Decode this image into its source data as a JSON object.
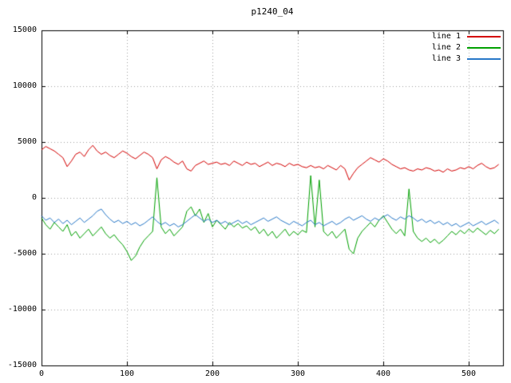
{
  "chart_data": {
    "type": "line",
    "title": "p1240_04",
    "xlabel": "",
    "ylabel": "",
    "xlim": [
      0,
      540
    ],
    "ylim": [
      -15000,
      15000
    ],
    "xticks": [
      0,
      100,
      200,
      300,
      400,
      500
    ],
    "yticks": [
      -15000,
      -10000,
      -5000,
      0,
      5000,
      10000,
      15000
    ],
    "grid": true,
    "grid_style": "dotted",
    "grid_color": "#a0a0a0",
    "border_color": "#000000",
    "background": "#ffffff",
    "legend_position": "top-right",
    "x_step": 5,
    "series": [
      {
        "name": "line 1",
        "color": "#d40000",
        "values": [
          4300,
          4600,
          4400,
          4200,
          3900,
          3600,
          2800,
          3300,
          3900,
          4100,
          3700,
          4300,
          4700,
          4200,
          3900,
          4100,
          3800,
          3600,
          3900,
          4200,
          4000,
          3700,
          3500,
          3800,
          4100,
          3900,
          3600,
          2600,
          3400,
          3700,
          3500,
          3200,
          3000,
          3300,
          2600,
          2400,
          2900,
          3100,
          3300,
          3000,
          3100,
          3200,
          3000,
          3100,
          2900,
          3300,
          3100,
          2900,
          3200,
          3000,
          3100,
          2800,
          3000,
          3200,
          2900,
          3100,
          3000,
          2800,
          3100,
          2900,
          3000,
          2800,
          2700,
          2900,
          2700,
          2800,
          2600,
          2900,
          2700,
          2500,
          2900,
          2600,
          1600,
          2200,
          2700,
          3000,
          3300,
          3600,
          3400,
          3200,
          3500,
          3300,
          3000,
          2800,
          2600,
          2700,
          2500,
          2400,
          2600,
          2500,
          2700,
          2600,
          2400,
          2500,
          2300,
          2600,
          2400,
          2500,
          2700,
          2600,
          2800,
          2600,
          2900,
          3100,
          2800,
          2600,
          2700,
          3000
        ]
      },
      {
        "name": "line 2",
        "color": "#00a000",
        "values": [
          -1800,
          -2400,
          -2800,
          -2200,
          -2600,
          -3000,
          -2400,
          -3400,
          -3000,
          -3600,
          -3200,
          -2800,
          -3400,
          -3000,
          -2600,
          -3200,
          -3600,
          -3300,
          -3800,
          -4200,
          -4800,
          -5600,
          -5200,
          -4400,
          -3800,
          -3400,
          -3000,
          1800,
          -2600,
          -3200,
          -2800,
          -3400,
          -3000,
          -2600,
          -1200,
          -800,
          -1600,
          -1000,
          -2200,
          -1400,
          -2600,
          -2000,
          -2400,
          -2800,
          -2200,
          -2600,
          -2300,
          -2700,
          -2500,
          -2900,
          -2600,
          -3200,
          -2800,
          -3400,
          -3000,
          -3600,
          -3200,
          -2800,
          -3400,
          -3000,
          -3300,
          -2900,
          -3100,
          2000,
          -2600,
          1600,
          -3000,
          -3400,
          -3000,
          -3600,
          -3200,
          -2800,
          -4600,
          -5000,
          -3600,
          -3000,
          -2600,
          -2200,
          -2600,
          -2000,
          -1600,
          -2200,
          -2800,
          -3200,
          -2800,
          -3400,
          800,
          -3000,
          -3600,
          -3900,
          -3600,
          -4000,
          -3700,
          -4100,
          -3800,
          -3400,
          -3000,
          -3300,
          -2900,
          -3200,
          -2800,
          -3100,
          -2700,
          -3000,
          -3300,
          -2900,
          -3200,
          -2800
        ]
      },
      {
        "name": "line 3",
        "color": "#2878c8",
        "values": [
          -1600,
          -2000,
          -1800,
          -2200,
          -1900,
          -2300,
          -2000,
          -2400,
          -2100,
          -1800,
          -2200,
          -1900,
          -1600,
          -1200,
          -1000,
          -1500,
          -1900,
          -2200,
          -2000,
          -2300,
          -2100,
          -2400,
          -2200,
          -2500,
          -2300,
          -2000,
          -1700,
          -2100,
          -2400,
          -2200,
          -2500,
          -2300,
          -2600,
          -2400,
          -2100,
          -1800,
          -1500,
          -1800,
          -2100,
          -1900,
          -2200,
          -2000,
          -2300,
          -2100,
          -2400,
          -2200,
          -2000,
          -2300,
          -2100,
          -2400,
          -2200,
          -2000,
          -1800,
          -2100,
          -1900,
          -1700,
          -2000,
          -2200,
          -2400,
          -2100,
          -2300,
          -2500,
          -2200,
          -2000,
          -2400,
          -2200,
          -2500,
          -2300,
          -2100,
          -2400,
          -2200,
          -1900,
          -1700,
          -2000,
          -1800,
          -1600,
          -1900,
          -2100,
          -1800,
          -2000,
          -1700,
          -1500,
          -1800,
          -2000,
          -1700,
          -1900,
          -1600,
          -1800,
          -2100,
          -1900,
          -2200,
          -2000,
          -2300,
          -2100,
          -2400,
          -2200,
          -2500,
          -2300,
          -2600,
          -2400,
          -2200,
          -2500,
          -2300,
          -2100,
          -2400,
          -2200,
          -2000,
          -2300
        ]
      }
    ]
  }
}
